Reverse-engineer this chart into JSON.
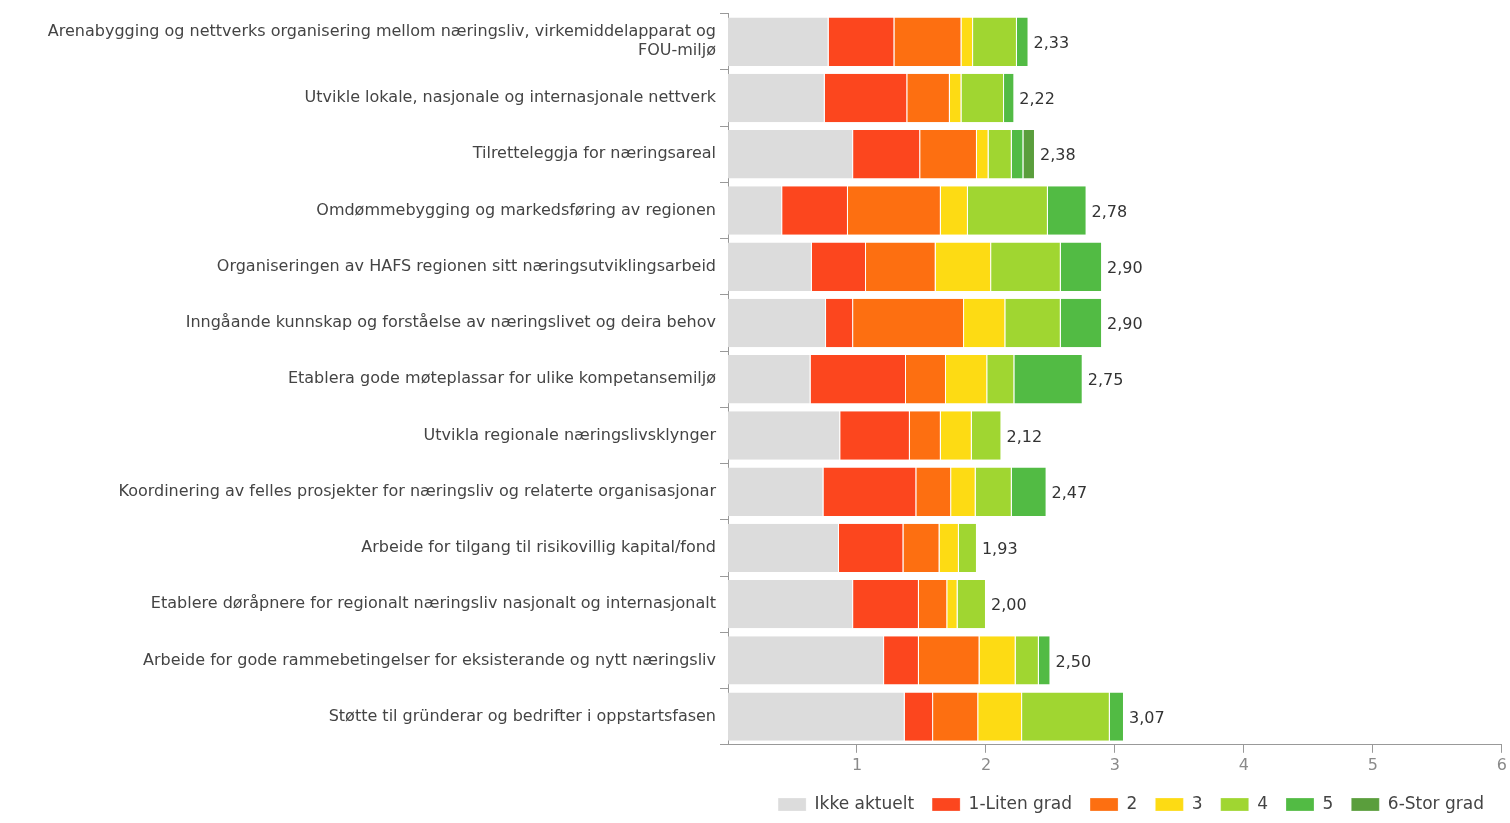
{
  "chart_data": {
    "type": "bar",
    "orientation": "horizontal",
    "stacked": true,
    "categories": [
      "Arenabygging og nettverks organisering mellom næringsliv, virkemiddelapparat og FOU-miljø",
      "Utvikle lokale, nasjonale og internasjonale nettverk",
      "Tilretteleggja for næringsareal",
      "Omdømmebygging og markedsføring av regionen",
      "Organiseringen av HAFS regionen sitt næringsutviklingsarbeid",
      "Inngåande kunnskap og forståelse av næringslivet og deira behov",
      "Etablera gode møteplassar for ulike kompetansemiljø",
      "Utvikla regionale næringslivsklynger",
      "Koordinering av felles prosjekter for næringsliv og relaterte organisasjonar",
      "Arbeide for tilgang til risikovillig kapital/fond",
      "Etablere døråpnere for regionalt næringsliv nasjonalt og internasjonalt",
      "Arbeide for gode rammebetingelser for eksisterande og nytt næringsliv",
      "Støtte til gründerar og bedrifter i oppstartsfasen"
    ],
    "series": [
      {
        "name": "Ikke aktuelt",
        "color": "#dcdcdc",
        "values": [
          0.78,
          0.75,
          0.97,
          0.42,
          0.65,
          0.76,
          0.64,
          0.87,
          0.74,
          0.86,
          0.97,
          1.21,
          1.37
        ]
      },
      {
        "name": "1-Liten grad",
        "color": "#fc461e",
        "values": [
          0.51,
          0.64,
          0.52,
          0.51,
          0.42,
          0.21,
          0.74,
          0.54,
          0.72,
          0.5,
          0.51,
          0.27,
          0.22
        ]
      },
      {
        "name": "2",
        "color": "#fd6f11",
        "values": [
          0.52,
          0.33,
          0.44,
          0.72,
          0.54,
          0.86,
          0.31,
          0.24,
          0.27,
          0.28,
          0.22,
          0.47,
          0.35
        ]
      },
      {
        "name": "3",
        "color": "#fddb14",
        "values": [
          0.09,
          0.09,
          0.09,
          0.21,
          0.43,
          0.32,
          0.32,
          0.24,
          0.19,
          0.15,
          0.08,
          0.28,
          0.34
        ]
      },
      {
        "name": "4",
        "color": "#a0d631",
        "values": [
          0.34,
          0.33,
          0.18,
          0.62,
          0.54,
          0.43,
          0.21,
          0.23,
          0.28,
          0.14,
          0.22,
          0.18,
          0.68
        ]
      },
      {
        "name": "5",
        "color": "#52bb44",
        "values": [
          0.09,
          0.08,
          0.09,
          0.3,
          0.32,
          0.32,
          0.53,
          null,
          0.27,
          null,
          null,
          0.09,
          0.11
        ]
      },
      {
        "name": "6-Stor grad",
        "color": "#5a9e3c",
        "values": [
          null,
          null,
          0.09,
          null,
          null,
          null,
          null,
          null,
          null,
          null,
          null,
          null,
          null
        ]
      }
    ],
    "totals": [
      "2,33",
      "2,22",
      "2,38",
      "2,78",
      "2,90",
      "2,90",
      "2,75",
      "2,12",
      "2,47",
      "1,93",
      "2,00",
      "2,50",
      "3,07"
    ],
    "xlim": [
      0,
      6
    ],
    "xticks": [
      1,
      2,
      3,
      4,
      5,
      6
    ],
    "grid": false,
    "legend": "bottom"
  }
}
